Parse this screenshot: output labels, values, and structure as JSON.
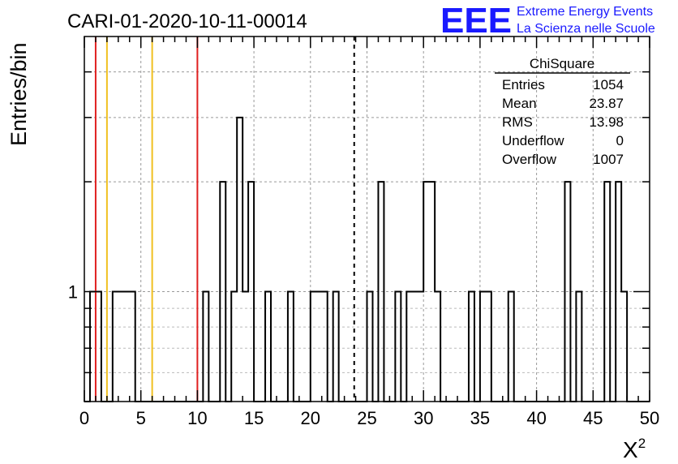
{
  "chart_data": {
    "type": "histogram",
    "title": "CARI-01-2020-10-11-00014",
    "xlabel": "X",
    "xlabel_superscript": "2",
    "ylabel": "Entries/bin",
    "xlim": [
      0,
      50
    ],
    "ylim_log": [
      0.5,
      5
    ],
    "y_scale": "log",
    "grid": true,
    "x_ticks": [
      "0",
      "5",
      "10",
      "15",
      "20",
      "25",
      "30",
      "35",
      "40",
      "45",
      "50"
    ],
    "y_tick_labels": [
      {
        "value": 1,
        "label": "1"
      }
    ],
    "bin_width": 0.5,
    "bins": [
      {
        "x0": 0.5,
        "count": 1
      },
      {
        "x0": 1.0,
        "count": 1
      },
      {
        "x0": 2.5,
        "count": 1
      },
      {
        "x0": 3.0,
        "count": 1
      },
      {
        "x0": 3.5,
        "count": 1
      },
      {
        "x0": 4.0,
        "count": 1
      },
      {
        "x0": 10.5,
        "count": 1
      },
      {
        "x0": 12.0,
        "count": 2
      },
      {
        "x0": 13.0,
        "count": 1
      },
      {
        "x0": 13.5,
        "count": 3
      },
      {
        "x0": 14.0,
        "count": 1
      },
      {
        "x0": 14.5,
        "count": 2
      },
      {
        "x0": 16.0,
        "count": 1
      },
      {
        "x0": 18.0,
        "count": 1
      },
      {
        "x0": 20.0,
        "count": 1
      },
      {
        "x0": 20.5,
        "count": 1
      },
      {
        "x0": 21.0,
        "count": 1
      },
      {
        "x0": 22.0,
        "count": 1
      },
      {
        "x0": 25.0,
        "count": 1
      },
      {
        "x0": 26.0,
        "count": 2
      },
      {
        "x0": 27.5,
        "count": 1
      },
      {
        "x0": 28.5,
        "count": 1
      },
      {
        "x0": 29.0,
        "count": 1
      },
      {
        "x0": 29.5,
        "count": 1
      },
      {
        "x0": 30.0,
        "count": 2
      },
      {
        "x0": 30.5,
        "count": 2
      },
      {
        "x0": 31.0,
        "count": 1
      },
      {
        "x0": 34.0,
        "count": 1
      },
      {
        "x0": 35.0,
        "count": 1
      },
      {
        "x0": 35.5,
        "count": 1
      },
      {
        "x0": 37.5,
        "count": 1
      },
      {
        "x0": 42.5,
        "count": 2
      },
      {
        "x0": 43.5,
        "count": 1
      },
      {
        "x0": 46.0,
        "count": 2
      },
      {
        "x0": 47.0,
        "count": 2
      },
      {
        "x0": 47.5,
        "count": 1
      }
    ],
    "vertical_lines": [
      {
        "x": 1.0,
        "color": "#e02020",
        "style": "solid"
      },
      {
        "x": 2.0,
        "color": "#f0c020",
        "style": "solid"
      },
      {
        "x": 6.0,
        "color": "#f0c020",
        "style": "solid"
      },
      {
        "x": 10.0,
        "color": "#e02020",
        "style": "solid"
      },
      {
        "x": 23.87,
        "color": "#000000",
        "style": "dashed"
      }
    ],
    "stats_box": {
      "title": "ChiSquare",
      "rows": [
        {
          "label": "Entries",
          "value": "1054"
        },
        {
          "label": "Mean",
          "value": "23.87"
        },
        {
          "label": "RMS",
          "value": "13.98"
        },
        {
          "label": "Underflow",
          "value": "0"
        },
        {
          "label": "Overflow",
          "value": "1007"
        }
      ]
    }
  },
  "logo": {
    "mark": "EEE",
    "line1": "Extreme Energy Events",
    "line2": "La Scienza nelle Scuole",
    "color": "#1a1aff"
  }
}
